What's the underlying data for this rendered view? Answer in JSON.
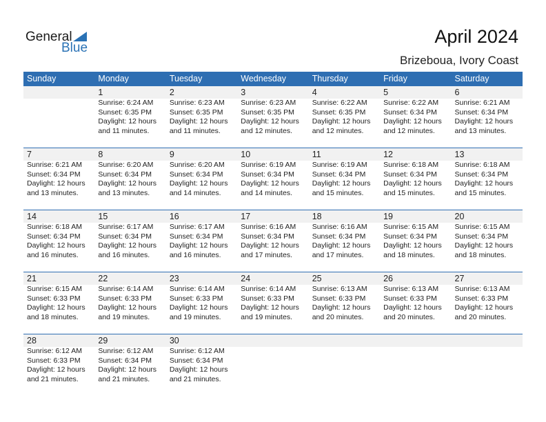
{
  "logo": {
    "line1": "General",
    "line2": "Blue"
  },
  "title": "April 2024",
  "location": "Brizeboua, Ivory Coast",
  "weekdays": [
    "Sunday",
    "Monday",
    "Tuesday",
    "Wednesday",
    "Thursday",
    "Friday",
    "Saturday"
  ],
  "weeks": [
    [
      null,
      {
        "day": "1",
        "sunrise": "Sunrise: 6:24 AM",
        "sunset": "Sunset: 6:35 PM",
        "daylight1": "Daylight: 12 hours",
        "daylight2": "and 11 minutes."
      },
      {
        "day": "2",
        "sunrise": "Sunrise: 6:23 AM",
        "sunset": "Sunset: 6:35 PM",
        "daylight1": "Daylight: 12 hours",
        "daylight2": "and 11 minutes."
      },
      {
        "day": "3",
        "sunrise": "Sunrise: 6:23 AM",
        "sunset": "Sunset: 6:35 PM",
        "daylight1": "Daylight: 12 hours",
        "daylight2": "and 12 minutes."
      },
      {
        "day": "4",
        "sunrise": "Sunrise: 6:22 AM",
        "sunset": "Sunset: 6:35 PM",
        "daylight1": "Daylight: 12 hours",
        "daylight2": "and 12 minutes."
      },
      {
        "day": "5",
        "sunrise": "Sunrise: 6:22 AM",
        "sunset": "Sunset: 6:34 PM",
        "daylight1": "Daylight: 12 hours",
        "daylight2": "and 12 minutes."
      },
      {
        "day": "6",
        "sunrise": "Sunrise: 6:21 AM",
        "sunset": "Sunset: 6:34 PM",
        "daylight1": "Daylight: 12 hours",
        "daylight2": "and 13 minutes."
      }
    ],
    [
      {
        "day": "7",
        "sunrise": "Sunrise: 6:21 AM",
        "sunset": "Sunset: 6:34 PM",
        "daylight1": "Daylight: 12 hours",
        "daylight2": "and 13 minutes."
      },
      {
        "day": "8",
        "sunrise": "Sunrise: 6:20 AM",
        "sunset": "Sunset: 6:34 PM",
        "daylight1": "Daylight: 12 hours",
        "daylight2": "and 13 minutes."
      },
      {
        "day": "9",
        "sunrise": "Sunrise: 6:20 AM",
        "sunset": "Sunset: 6:34 PM",
        "daylight1": "Daylight: 12 hours",
        "daylight2": "and 14 minutes."
      },
      {
        "day": "10",
        "sunrise": "Sunrise: 6:19 AM",
        "sunset": "Sunset: 6:34 PM",
        "daylight1": "Daylight: 12 hours",
        "daylight2": "and 14 minutes."
      },
      {
        "day": "11",
        "sunrise": "Sunrise: 6:19 AM",
        "sunset": "Sunset: 6:34 PM",
        "daylight1": "Daylight: 12 hours",
        "daylight2": "and 15 minutes."
      },
      {
        "day": "12",
        "sunrise": "Sunrise: 6:18 AM",
        "sunset": "Sunset: 6:34 PM",
        "daylight1": "Daylight: 12 hours",
        "daylight2": "and 15 minutes."
      },
      {
        "day": "13",
        "sunrise": "Sunrise: 6:18 AM",
        "sunset": "Sunset: 6:34 PM",
        "daylight1": "Daylight: 12 hours",
        "daylight2": "and 15 minutes."
      }
    ],
    [
      {
        "day": "14",
        "sunrise": "Sunrise: 6:18 AM",
        "sunset": "Sunset: 6:34 PM",
        "daylight1": "Daylight: 12 hours",
        "daylight2": "and 16 minutes."
      },
      {
        "day": "15",
        "sunrise": "Sunrise: 6:17 AM",
        "sunset": "Sunset: 6:34 PM",
        "daylight1": "Daylight: 12 hours",
        "daylight2": "and 16 minutes."
      },
      {
        "day": "16",
        "sunrise": "Sunrise: 6:17 AM",
        "sunset": "Sunset: 6:34 PM",
        "daylight1": "Daylight: 12 hours",
        "daylight2": "and 16 minutes."
      },
      {
        "day": "17",
        "sunrise": "Sunrise: 6:16 AM",
        "sunset": "Sunset: 6:34 PM",
        "daylight1": "Daylight: 12 hours",
        "daylight2": "and 17 minutes."
      },
      {
        "day": "18",
        "sunrise": "Sunrise: 6:16 AM",
        "sunset": "Sunset: 6:34 PM",
        "daylight1": "Daylight: 12 hours",
        "daylight2": "and 17 minutes."
      },
      {
        "day": "19",
        "sunrise": "Sunrise: 6:15 AM",
        "sunset": "Sunset: 6:34 PM",
        "daylight1": "Daylight: 12 hours",
        "daylight2": "and 18 minutes."
      },
      {
        "day": "20",
        "sunrise": "Sunrise: 6:15 AM",
        "sunset": "Sunset: 6:34 PM",
        "daylight1": "Daylight: 12 hours",
        "daylight2": "and 18 minutes."
      }
    ],
    [
      {
        "day": "21",
        "sunrise": "Sunrise: 6:15 AM",
        "sunset": "Sunset: 6:33 PM",
        "daylight1": "Daylight: 12 hours",
        "daylight2": "and 18 minutes."
      },
      {
        "day": "22",
        "sunrise": "Sunrise: 6:14 AM",
        "sunset": "Sunset: 6:33 PM",
        "daylight1": "Daylight: 12 hours",
        "daylight2": "and 19 minutes."
      },
      {
        "day": "23",
        "sunrise": "Sunrise: 6:14 AM",
        "sunset": "Sunset: 6:33 PM",
        "daylight1": "Daylight: 12 hours",
        "daylight2": "and 19 minutes."
      },
      {
        "day": "24",
        "sunrise": "Sunrise: 6:14 AM",
        "sunset": "Sunset: 6:33 PM",
        "daylight1": "Daylight: 12 hours",
        "daylight2": "and 19 minutes."
      },
      {
        "day": "25",
        "sunrise": "Sunrise: 6:13 AM",
        "sunset": "Sunset: 6:33 PM",
        "daylight1": "Daylight: 12 hours",
        "daylight2": "and 20 minutes."
      },
      {
        "day": "26",
        "sunrise": "Sunrise: 6:13 AM",
        "sunset": "Sunset: 6:33 PM",
        "daylight1": "Daylight: 12 hours",
        "daylight2": "and 20 minutes."
      },
      {
        "day": "27",
        "sunrise": "Sunrise: 6:13 AM",
        "sunset": "Sunset: 6:33 PM",
        "daylight1": "Daylight: 12 hours",
        "daylight2": "and 20 minutes."
      }
    ],
    [
      {
        "day": "28",
        "sunrise": "Sunrise: 6:12 AM",
        "sunset": "Sunset: 6:33 PM",
        "daylight1": "Daylight: 12 hours",
        "daylight2": "and 21 minutes."
      },
      {
        "day": "29",
        "sunrise": "Sunrise: 6:12 AM",
        "sunset": "Sunset: 6:34 PM",
        "daylight1": "Daylight: 12 hours",
        "daylight2": "and 21 minutes."
      },
      {
        "day": "30",
        "sunrise": "Sunrise: 6:12 AM",
        "sunset": "Sunset: 6:34 PM",
        "daylight1": "Daylight: 12 hours",
        "daylight2": "and 21 minutes."
      },
      null,
      null,
      null,
      null
    ]
  ]
}
